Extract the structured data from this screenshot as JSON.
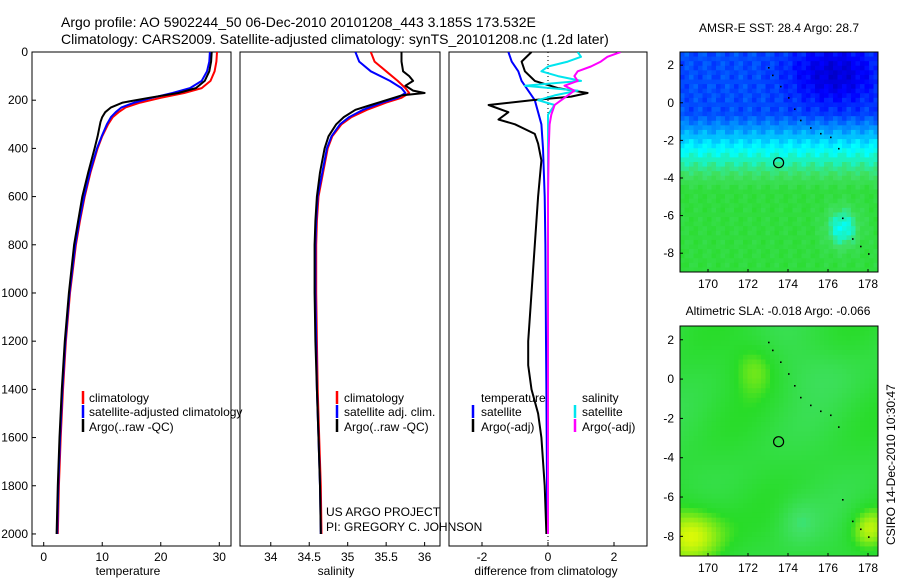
{
  "header": {
    "line1": "Argo profile: AO 5902244_50 06-Dec-2010 20101208_443 3.185S 173.532E",
    "line2": "Climatology: CARS2009. Satellite-adjusted climatology: synTS_20101208.nc (1.2d later)"
  },
  "colors": {
    "climatology": "#ff0000",
    "satellite": "#0000ff",
    "argo": "#000000",
    "sal_satellite": "#00e5ee",
    "sal_argo": "#ff00ff"
  },
  "depth_axis": {
    "range": [
      0,
      2050
    ],
    "ticks": [
      "0",
      "200",
      "400",
      "600",
      "800",
      "1000",
      "1200",
      "1400",
      "1600",
      "1800",
      "2000"
    ]
  },
  "chart_data": [
    {
      "type": "line",
      "id": "temperature",
      "xlabel": "temperature",
      "ylabel": "",
      "xlim": [
        -2,
        32
      ],
      "xticks": [
        "0",
        "10",
        "20",
        "30"
      ],
      "legend": [
        "climatology",
        "satellite-adjusted climatology",
        "Argo(..raw -QC)"
      ],
      "series": [
        {
          "name": "climatology",
          "depth": [
            0,
            40,
            80,
            120,
            150,
            170,
            190,
            210,
            230,
            250,
            270,
            300,
            350,
            400,
            500,
            600,
            700,
            800,
            1000,
            1200,
            1400,
            1600,
            1800,
            2000
          ],
          "values": [
            29.6,
            29.5,
            29.2,
            28.5,
            27.0,
            24.0,
            20.0,
            16.5,
            14.0,
            12.8,
            11.8,
            11.0,
            10.0,
            9.2,
            8.0,
            7.0,
            6.2,
            5.5,
            4.5,
            3.8,
            3.3,
            2.9,
            2.6,
            2.4
          ]
        },
        {
          "name": "satellite-adjusted climatology",
          "depth": [
            0,
            40,
            80,
            120,
            150,
            170,
            190,
            210,
            230,
            250,
            270,
            300,
            350,
            400,
            500,
            600,
            700,
            800,
            1000,
            1200,
            1400,
            1600,
            1800,
            2000
          ],
          "values": [
            28.4,
            28.3,
            27.9,
            27.0,
            25.0,
            22.0,
            18.5,
            15.5,
            13.3,
            12.3,
            11.5,
            10.8,
            9.9,
            9.1,
            7.9,
            6.9,
            6.1,
            5.4,
            4.4,
            3.7,
            3.2,
            2.8,
            2.5,
            2.3
          ]
        },
        {
          "name": "Argo(..raw -QC)",
          "depth": [
            0,
            40,
            80,
            120,
            150,
            170,
            190,
            210,
            230,
            250,
            270,
            290,
            350,
            400,
            500,
            600,
            700,
            800,
            1000,
            1200,
            1400,
            1600,
            1800,
            2000
          ],
          "values": [
            28.7,
            28.6,
            28.3,
            27.5,
            26.0,
            23.0,
            18.0,
            13.5,
            11.5,
            10.5,
            10.0,
            9.7,
            9.2,
            8.7,
            7.6,
            6.6,
            5.9,
            5.2,
            4.3,
            3.6,
            3.1,
            2.7,
            2.4,
            2.2
          ]
        }
      ]
    },
    {
      "type": "line",
      "id": "salinity",
      "xlabel": "salinity",
      "xlim": [
        33.6,
        36.2
      ],
      "xticks": [
        "34",
        "34.5",
        "35",
        "35.5",
        "36"
      ],
      "legend": [
        "climatology",
        "satellite adj. clim.",
        "Argo(..raw -QC)"
      ],
      "series": [
        {
          "name": "climatology",
          "depth": [
            0,
            40,
            80,
            120,
            150,
            170,
            190,
            210,
            240,
            270,
            300,
            350,
            400,
            500,
            600,
            700,
            800,
            1000,
            1200,
            1400,
            1600,
            1800,
            2000
          ],
          "values": [
            35.3,
            35.35,
            35.5,
            35.65,
            35.75,
            35.8,
            35.7,
            35.5,
            35.25,
            35.05,
            34.92,
            34.8,
            34.74,
            34.68,
            34.62,
            34.6,
            34.59,
            34.59,
            34.6,
            34.61,
            34.63,
            34.65,
            34.66
          ]
        },
        {
          "name": "satellite adj. clim.",
          "depth": [
            0,
            40,
            80,
            120,
            150,
            170,
            190,
            210,
            240,
            270,
            300,
            350,
            400,
            500,
            600,
            700,
            800,
            1000,
            1200,
            1400,
            1600,
            1800,
            2000
          ],
          "values": [
            35.1,
            35.15,
            35.3,
            35.55,
            35.7,
            35.75,
            35.65,
            35.45,
            35.2,
            35.02,
            34.9,
            34.79,
            34.73,
            34.67,
            34.61,
            34.59,
            34.58,
            34.58,
            34.59,
            34.6,
            34.62,
            34.64,
            34.65
          ]
        },
        {
          "name": "Argo(..raw -QC)",
          "depth": [
            0,
            40,
            80,
            100,
            120,
            140,
            160,
            170,
            180,
            200,
            220,
            240,
            270,
            300,
            350,
            400,
            500,
            600,
            700,
            800,
            1000,
            1200,
            1400,
            1600,
            1800,
            2000
          ],
          "values": [
            35.7,
            35.7,
            35.72,
            35.8,
            35.85,
            35.75,
            35.85,
            36.0,
            35.7,
            35.5,
            35.3,
            35.1,
            34.95,
            34.85,
            34.75,
            34.7,
            34.64,
            34.6,
            34.58,
            34.57,
            34.57,
            34.58,
            34.6,
            34.62,
            34.64,
            34.65
          ]
        }
      ]
    },
    {
      "type": "line",
      "id": "difference",
      "xlabel": "difference from climatology",
      "xlim": [
        -3,
        3
      ],
      "xticks": [
        "-2",
        "0",
        "2"
      ],
      "legend_temperature": [
        "temperature",
        "satellite",
        "Argo(-adj)"
      ],
      "legend_salinity": [
        "salinity",
        "satellite",
        "Argo(-adj)"
      ],
      "series": [
        {
          "name": "temperature satellite",
          "depth": [
            0,
            40,
            80,
            120,
            160,
            200,
            250,
            300,
            400,
            600,
            800,
            1000,
            1200,
            1400,
            1600,
            1800,
            2000
          ],
          "values": [
            -1.2,
            -1.1,
            -0.9,
            -0.8,
            -0.6,
            -0.4,
            -0.3,
            -0.2,
            -0.15,
            -0.1,
            -0.08,
            -0.07,
            -0.06,
            -0.05,
            -0.04,
            -0.03,
            -0.03
          ]
        },
        {
          "name": "temperature Argo(-adj)",
          "depth": [
            0,
            40,
            80,
            120,
            150,
            170,
            185,
            200,
            220,
            250,
            280,
            300,
            340,
            380,
            450,
            600,
            800,
            1000,
            1200,
            1300,
            1400,
            1500,
            1600,
            1800,
            2000
          ],
          "values": [
            -0.5,
            -0.8,
            -0.7,
            -0.4,
            0.3,
            1.2,
            0.7,
            -0.5,
            -1.8,
            -1.2,
            -1.5,
            -1.0,
            -0.4,
            -0.3,
            -0.2,
            -0.3,
            -0.4,
            -0.5,
            -0.6,
            -0.6,
            -0.5,
            -0.3,
            -0.2,
            -0.1,
            -0.05
          ]
        },
        {
          "name": "salinity satellite",
          "depth": [
            0,
            20,
            40,
            60,
            80,
            100,
            120,
            140,
            160,
            180,
            200,
            220,
            260,
            300,
            400,
            600,
            800,
            1000,
            1200,
            1400,
            1600,
            1800,
            2000
          ],
          "values": [
            0.9,
            1.0,
            0.6,
            0.0,
            -0.2,
            0.3,
            1.0,
            -0.7,
            0.9,
            0.2,
            -0.3,
            0.2,
            0.0,
            0.0,
            0.0,
            0.0,
            0.0,
            0.0,
            0.0,
            0.0,
            0.0,
            0.0,
            0.0
          ]
        },
        {
          "name": "salinity Argo(-adj)",
          "depth": [
            0,
            20,
            40,
            60,
            80,
            100,
            120,
            140,
            160,
            180,
            200,
            220,
            260,
            300,
            400,
            600,
            800,
            1000,
            1200,
            1400,
            1600,
            1800,
            2000
          ],
          "values": [
            2.2,
            1.8,
            1.6,
            1.3,
            0.9,
            0.8,
            0.9,
            0.5,
            0.8,
            0.6,
            0.4,
            0.2,
            0.1,
            0.05,
            0.02,
            0.0,
            0.0,
            0.0,
            0.0,
            0.0,
            0.0,
            0.0,
            0.0
          ]
        }
      ]
    },
    {
      "type": "heatmap",
      "id": "sst-map",
      "title": "AMSR-E SST: 28.4 Argo: 28.7",
      "xticks": [
        "170",
        "172",
        "174",
        "176",
        "178"
      ],
      "yticks": [
        "2",
        "0",
        "-2",
        "-4",
        "-6",
        "-8"
      ],
      "xlim": [
        168.6,
        178.5
      ],
      "ylim": [
        -9.0,
        2.7
      ],
      "marker": {
        "lon": 173.532,
        "lat": -3.185
      }
    },
    {
      "type": "heatmap",
      "id": "sla-map",
      "title": "Altimetric SLA: -0.018 Argo: -0.066",
      "xticks": [
        "170",
        "172",
        "174",
        "176",
        "178"
      ],
      "yticks": [
        "2",
        "0",
        "-2",
        "-4",
        "-6",
        "-8"
      ],
      "xlim": [
        168.6,
        178.5
      ],
      "ylim": [
        -9.0,
        2.7
      ],
      "marker": {
        "lon": 173.532,
        "lat": -3.185
      }
    }
  ],
  "credits": {
    "project": "US ARGO PROJECT",
    "pi": "PI: GREGORY C. JOHNSON",
    "timestamp": "CSIRO 14-Dec-2010 10:30:47"
  }
}
